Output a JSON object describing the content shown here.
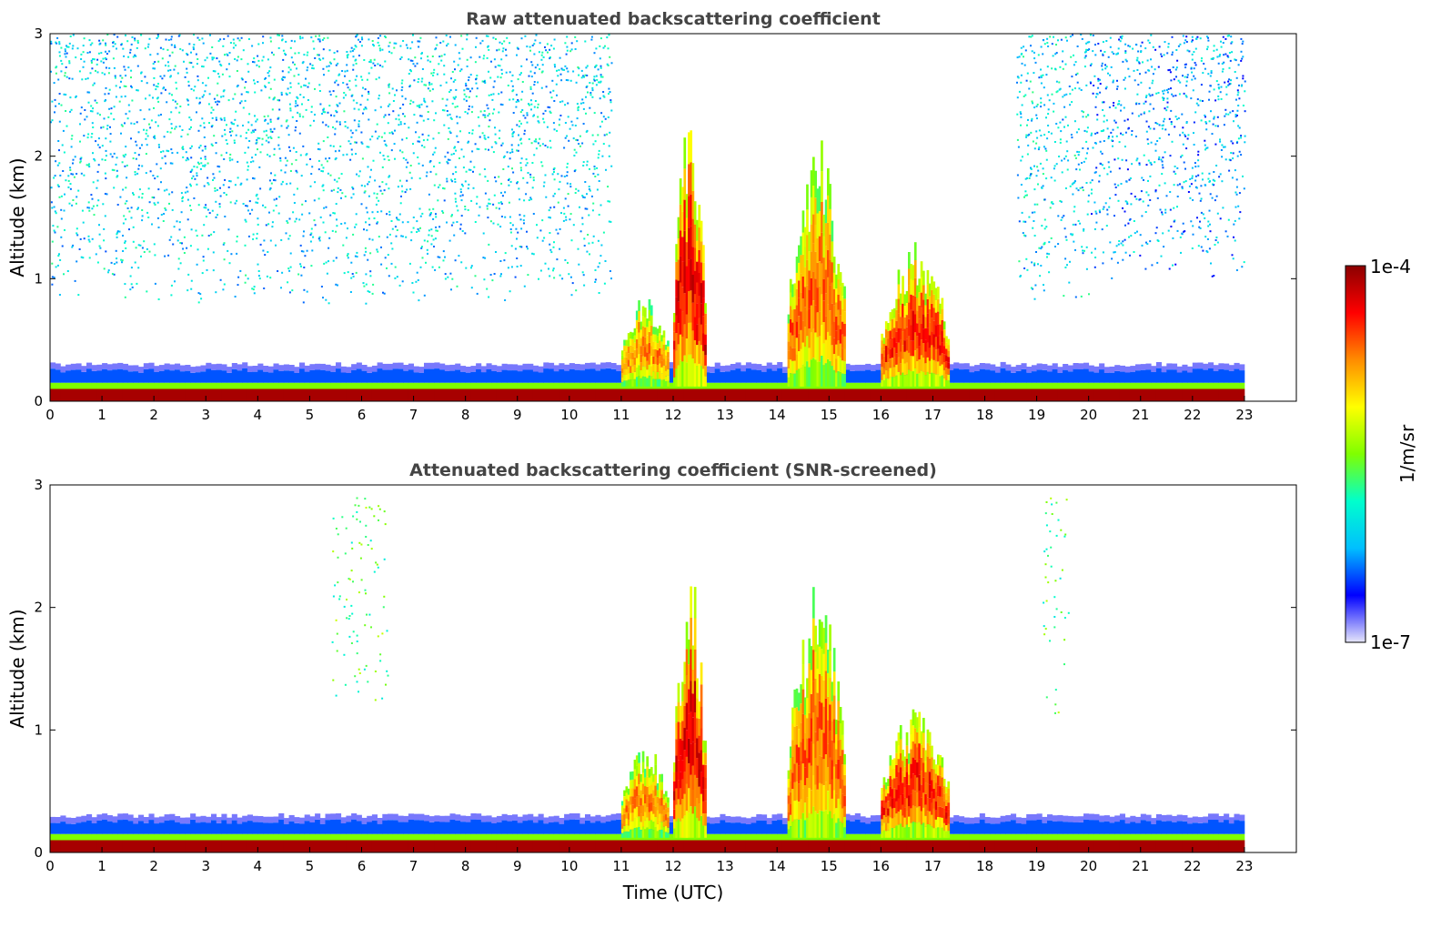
{
  "chart_data": [
    {
      "type": "heatmap",
      "title": "Raw attenuated backscattering coefficient",
      "ylabel": "Altitude (km)",
      "xlabel": "",
      "xlim": [
        0,
        24
      ],
      "ylim": [
        0,
        3
      ],
      "x_ticks": [
        0,
        1,
        2,
        3,
        4,
        5,
        6,
        7,
        8,
        9,
        10,
        11,
        12,
        13,
        14,
        15,
        16,
        17,
        18,
        19,
        20,
        21,
        22,
        23
      ],
      "y_ticks": [
        0,
        1,
        2,
        3
      ],
      "data_extent_hours": [
        0,
        23
      ],
      "surface_layer_top_km": 0.1,
      "boundary_layer_top_km": 0.25,
      "features": [
        {
          "name": "cloud",
          "t_start": 11.0,
          "t_end": 11.9,
          "top_km": 0.9,
          "level": 0.75
        },
        {
          "name": "cloud",
          "t_start": 12.0,
          "t_end": 12.6,
          "top_km": 2.4,
          "level": 0.9
        },
        {
          "name": "cloud",
          "t_start": 14.2,
          "t_end": 15.3,
          "top_km": 2.2,
          "level": 0.8
        },
        {
          "name": "cloud",
          "t_start": 16.0,
          "t_end": 17.3,
          "top_km": 1.3,
          "level": 0.85
        },
        {
          "name": "noise",
          "t_start": 0.0,
          "t_end": 10.8,
          "bottom_km": 0.8,
          "level": 0.3
        },
        {
          "name": "noise",
          "t_start": 18.6,
          "t_end": 20.0,
          "bottom_km": 0.8,
          "level": 0.3
        },
        {
          "name": "noise",
          "t_start": 20.0,
          "t_end": 23.0,
          "bottom_km": 1.0,
          "level": 0.25
        }
      ]
    },
    {
      "type": "heatmap",
      "title": "Attenuated backscattering coefficient (SNR-screened)",
      "ylabel": "Altitude (km)",
      "xlabel": "Time (UTC)",
      "xlim": [
        0,
        24
      ],
      "ylim": [
        0,
        3
      ],
      "x_ticks": [
        0,
        1,
        2,
        3,
        4,
        5,
        6,
        7,
        8,
        9,
        10,
        11,
        12,
        13,
        14,
        15,
        16,
        17,
        18,
        19,
        20,
        21,
        22,
        23
      ],
      "y_ticks": [
        0,
        1,
        2,
        3
      ],
      "data_extent_hours": [
        0,
        23
      ],
      "surface_layer_top_km": 0.1,
      "boundary_layer_top_km": 0.25,
      "features": [
        {
          "name": "cloud",
          "t_start": 11.0,
          "t_end": 11.9,
          "top_km": 0.9,
          "level": 0.75
        },
        {
          "name": "cloud",
          "t_start": 12.0,
          "t_end": 12.6,
          "top_km": 2.4,
          "level": 0.9
        },
        {
          "name": "cloud",
          "t_start": 14.2,
          "t_end": 15.3,
          "top_km": 2.2,
          "level": 0.8
        },
        {
          "name": "cloud",
          "t_start": 16.0,
          "t_end": 17.3,
          "top_km": 1.2,
          "level": 0.85
        },
        {
          "name": "speckle",
          "t_start": 5.4,
          "t_end": 6.5,
          "bottom_km": 1.2,
          "top_km": 2.9,
          "level": 0.45
        },
        {
          "name": "speckle",
          "t_start": 19.1,
          "t_end": 19.6,
          "bottom_km": 1.1,
          "top_km": 2.9,
          "level": 0.45
        }
      ]
    }
  ],
  "colorbar": {
    "label": "1/m/sr",
    "max_label": "1e-4",
    "min_label": "1e-7",
    "colors": [
      "#e6e6fa",
      "#0000ff",
      "#00bfff",
      "#00ffcc",
      "#7fff00",
      "#ffff00",
      "#ff8c00",
      "#ff0000",
      "#8b0000"
    ]
  }
}
